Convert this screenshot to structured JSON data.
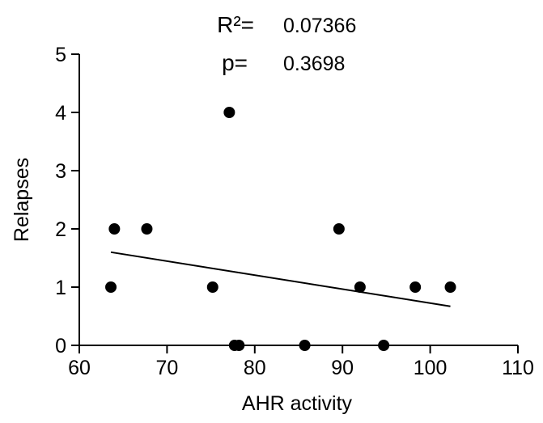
{
  "chart_data": {
    "type": "scatter",
    "title": "",
    "xlabel": "AHR activity",
    "ylabel": "Relapses",
    "xlim": [
      60,
      110
    ],
    "ylim": [
      0,
      5
    ],
    "x_ticks": [
      60,
      70,
      80,
      90,
      100,
      110
    ],
    "x_tick_labels": [
      "60",
      "70",
      "80",
      "90",
      "100",
      "110"
    ],
    "y_ticks": [
      0,
      1,
      2,
      3,
      4,
      5
    ],
    "y_tick_labels": [
      "0",
      "1",
      "2",
      "3",
      "4",
      "5"
    ],
    "grid": false,
    "legend": "none",
    "point_color": "#000000",
    "line_color": "#000000",
    "points": [
      {
        "x": 63.6,
        "y": 1
      },
      {
        "x": 64.0,
        "y": 2
      },
      {
        "x": 67.7,
        "y": 2
      },
      {
        "x": 75.2,
        "y": 1
      },
      {
        "x": 77.1,
        "y": 4
      },
      {
        "x": 77.7,
        "y": 0
      },
      {
        "x": 78.2,
        "y": 0
      },
      {
        "x": 85.7,
        "y": 0
      },
      {
        "x": 89.6,
        "y": 2
      },
      {
        "x": 92.0,
        "y": 1
      },
      {
        "x": 94.7,
        "y": 0
      },
      {
        "x": 98.3,
        "y": 1
      },
      {
        "x": 102.3,
        "y": 1
      }
    ],
    "regression_line": {
      "x": [
        63.6,
        102.3
      ],
      "y": [
        1.6,
        0.67
      ]
    },
    "annotations": {
      "r2_label": "R²=",
      "r2_value": "0.07366",
      "p_label": "p=",
      "p_value": "0.3698"
    }
  }
}
